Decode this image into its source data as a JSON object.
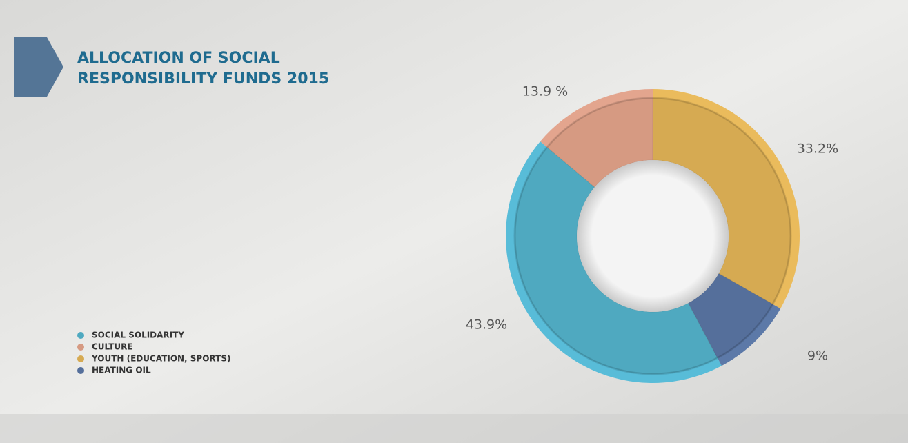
{
  "chart_data": {
    "type": "donut",
    "title": [
      "ALLOCATION OF SOCIAL",
      "RESPONSIBILITY FUNDS 2015"
    ],
    "categories": [
      "SOCIAL SOLIDARITY",
      "CULTURE",
      "YOUTH (EDUCATION, SPORTS)",
      "HEATING OIL"
    ],
    "values": [
      43.9,
      13.9,
      33.2,
      9
    ],
    "value_labels": [
      "43.9%",
      "13.9 %",
      "33.2%",
      "9%"
    ],
    "colors": [
      "#4fa9c0",
      "#d69a82",
      "#d6aa52",
      "#556f9b"
    ],
    "rim_colors": [
      "#58bcd8",
      "#e3a58e",
      "#eabb5c",
      "#5c79a8"
    ],
    "legend": "bottom-left"
  }
}
